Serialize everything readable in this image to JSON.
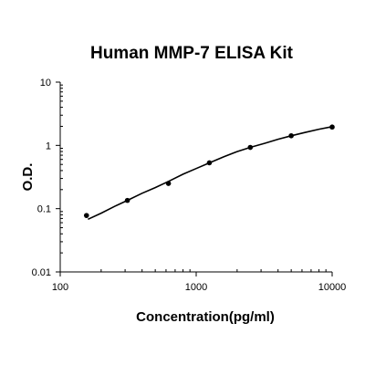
{
  "chart_data": {
    "type": "scatter",
    "title": "Human MMP-7 ELISA Kit",
    "xlabel": "Concentration(pg/ml)",
    "ylabel": "O.D.",
    "x_scale": "log",
    "y_scale": "log",
    "xlim": [
      100,
      10000
    ],
    "ylim": [
      0.01,
      10
    ],
    "x_ticks": [
      "100",
      "1000",
      "10000"
    ],
    "y_ticks": [
      "0.01",
      "0.1",
      "1",
      "10"
    ],
    "x_tick_values": [
      100,
      1000,
      10000
    ],
    "y_tick_values": [
      0.01,
      0.1,
      1,
      10
    ],
    "grid": false,
    "legend": "none",
    "points": {
      "x": [
        156,
        312,
        625,
        1250,
        2500,
        5000,
        10000
      ],
      "y": [
        0.078,
        0.135,
        0.25,
        0.53,
        0.93,
        1.42,
        1.95
      ]
    },
    "fit_curve": {
      "x": [
        160,
        200,
        250,
        312,
        400,
        500,
        625,
        800,
        1000,
        1250,
        1600,
        2000,
        2500,
        3200,
        4000,
        5000,
        6300,
        8000,
        10000
      ],
      "y": [
        0.068,
        0.085,
        0.108,
        0.135,
        0.175,
        0.215,
        0.27,
        0.35,
        0.43,
        0.53,
        0.66,
        0.8,
        0.93,
        1.08,
        1.25,
        1.42,
        1.6,
        1.8,
        1.98
      ]
    },
    "colors": {
      "marker": "#000000",
      "line": "#000000",
      "axis": "#000000"
    }
  }
}
